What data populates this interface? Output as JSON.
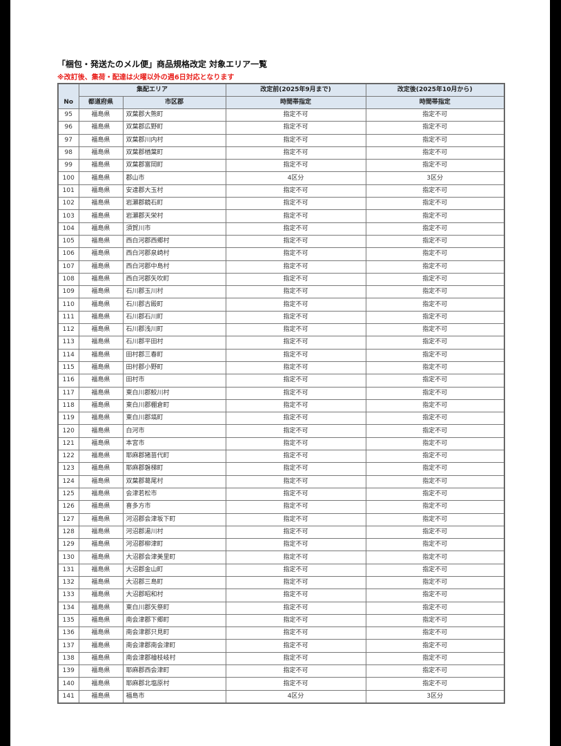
{
  "title": "「梱包・発送たのメル便」商品規格改定 対象エリア一覧",
  "notice": "※改訂後、集荷・配達は火曜以外の週6日対応となります",
  "notice_color": "#e8201c",
  "header_bg": "#dce6f1",
  "headers": {
    "no": "No",
    "area_group": "集配エリア",
    "prefecture": "都道府県",
    "city": "市区郡",
    "before_group": "改定前(2025年9月まで)",
    "before_sub": "時間帯指定",
    "after_group": "改定後(2025年10月から)",
    "after_sub": "時間帯指定"
  },
  "rows": [
    {
      "no": "95",
      "pref": "福島県",
      "city": "双葉郡大熊町",
      "before": "指定不可",
      "after": "指定不可"
    },
    {
      "no": "96",
      "pref": "福島県",
      "city": "双葉郡広野町",
      "before": "指定不可",
      "after": "指定不可"
    },
    {
      "no": "97",
      "pref": "福島県",
      "city": "双葉郡川内村",
      "before": "指定不可",
      "after": "指定不可"
    },
    {
      "no": "98",
      "pref": "福島県",
      "city": "双葉郡楢葉町",
      "before": "指定不可",
      "after": "指定不可"
    },
    {
      "no": "99",
      "pref": "福島県",
      "city": "双葉郡富岡町",
      "before": "指定不可",
      "after": "指定不可"
    },
    {
      "no": "100",
      "pref": "福島県",
      "city": "郡山市",
      "before": "4区分",
      "after": "3区分"
    },
    {
      "no": "101",
      "pref": "福島県",
      "city": "安達郡大玉村",
      "before": "指定不可",
      "after": "指定不可"
    },
    {
      "no": "102",
      "pref": "福島県",
      "city": "岩瀬郡鏡石町",
      "before": "指定不可",
      "after": "指定不可"
    },
    {
      "no": "103",
      "pref": "福島県",
      "city": "岩瀬郡天栄村",
      "before": "指定不可",
      "after": "指定不可"
    },
    {
      "no": "104",
      "pref": "福島県",
      "city": "須賀川市",
      "before": "指定不可",
      "after": "指定不可"
    },
    {
      "no": "105",
      "pref": "福島県",
      "city": "西白河郡西郷村",
      "before": "指定不可",
      "after": "指定不可"
    },
    {
      "no": "106",
      "pref": "福島県",
      "city": "西白河郡泉崎村",
      "before": "指定不可",
      "after": "指定不可"
    },
    {
      "no": "107",
      "pref": "福島県",
      "city": "西白河郡中島村",
      "before": "指定不可",
      "after": "指定不可"
    },
    {
      "no": "108",
      "pref": "福島県",
      "city": "西白河郡矢吹町",
      "before": "指定不可",
      "after": "指定不可"
    },
    {
      "no": "109",
      "pref": "福島県",
      "city": "石川郡玉川村",
      "before": "指定不可",
      "after": "指定不可"
    },
    {
      "no": "110",
      "pref": "福島県",
      "city": "石川郡古殿町",
      "before": "指定不可",
      "after": "指定不可"
    },
    {
      "no": "111",
      "pref": "福島県",
      "city": "石川郡石川町",
      "before": "指定不可",
      "after": "指定不可"
    },
    {
      "no": "112",
      "pref": "福島県",
      "city": "石川郡浅川町",
      "before": "指定不可",
      "after": "指定不可"
    },
    {
      "no": "113",
      "pref": "福島県",
      "city": "石川郡平田村",
      "before": "指定不可",
      "after": "指定不可"
    },
    {
      "no": "114",
      "pref": "福島県",
      "city": "田村郡三春町",
      "before": "指定不可",
      "after": "指定不可"
    },
    {
      "no": "115",
      "pref": "福島県",
      "city": "田村郡小野町",
      "before": "指定不可",
      "after": "指定不可"
    },
    {
      "no": "116",
      "pref": "福島県",
      "city": "田村市",
      "before": "指定不可",
      "after": "指定不可"
    },
    {
      "no": "117",
      "pref": "福島県",
      "city": "東白川郡鮫川村",
      "before": "指定不可",
      "after": "指定不可"
    },
    {
      "no": "118",
      "pref": "福島県",
      "city": "東白川郡棚倉町",
      "before": "指定不可",
      "after": "指定不可"
    },
    {
      "no": "119",
      "pref": "福島県",
      "city": "東白川郡塙町",
      "before": "指定不可",
      "after": "指定不可"
    },
    {
      "no": "120",
      "pref": "福島県",
      "city": "白河市",
      "before": "指定不可",
      "after": "指定不可"
    },
    {
      "no": "121",
      "pref": "福島県",
      "city": "本宮市",
      "before": "指定不可",
      "after": "指定不可"
    },
    {
      "no": "122",
      "pref": "福島県",
      "city": "耶麻郡猪苗代町",
      "before": "指定不可",
      "after": "指定不可"
    },
    {
      "no": "123",
      "pref": "福島県",
      "city": "耶麻郡磐梯町",
      "before": "指定不可",
      "after": "指定不可"
    },
    {
      "no": "124",
      "pref": "福島県",
      "city": "双葉郡葛尾村",
      "before": "指定不可",
      "after": "指定不可"
    },
    {
      "no": "125",
      "pref": "福島県",
      "city": "会津若松市",
      "before": "指定不可",
      "after": "指定不可"
    },
    {
      "no": "126",
      "pref": "福島県",
      "city": "喜多方市",
      "before": "指定不可",
      "after": "指定不可"
    },
    {
      "no": "127",
      "pref": "福島県",
      "city": "河沼郡会津坂下町",
      "before": "指定不可",
      "after": "指定不可"
    },
    {
      "no": "128",
      "pref": "福島県",
      "city": "河沼郡湯川村",
      "before": "指定不可",
      "after": "指定不可"
    },
    {
      "no": "129",
      "pref": "福島県",
      "city": "河沼郡柳津町",
      "before": "指定不可",
      "after": "指定不可"
    },
    {
      "no": "130",
      "pref": "福島県",
      "city": "大沼郡会津美里町",
      "before": "指定不可",
      "after": "指定不可"
    },
    {
      "no": "131",
      "pref": "福島県",
      "city": "大沼郡金山町",
      "before": "指定不可",
      "after": "指定不可"
    },
    {
      "no": "132",
      "pref": "福島県",
      "city": "大沼郡三島町",
      "before": "指定不可",
      "after": "指定不可"
    },
    {
      "no": "133",
      "pref": "福島県",
      "city": "大沼郡昭和村",
      "before": "指定不可",
      "after": "指定不可"
    },
    {
      "no": "134",
      "pref": "福島県",
      "city": "東白川郡矢祭町",
      "before": "指定不可",
      "after": "指定不可"
    },
    {
      "no": "135",
      "pref": "福島県",
      "city": "南会津郡下郷町",
      "before": "指定不可",
      "after": "指定不可"
    },
    {
      "no": "136",
      "pref": "福島県",
      "city": "南会津郡只見町",
      "before": "指定不可",
      "after": "指定不可"
    },
    {
      "no": "137",
      "pref": "福島県",
      "city": "南会津郡南会津町",
      "before": "指定不可",
      "after": "指定不可"
    },
    {
      "no": "138",
      "pref": "福島県",
      "city": "南会津郡檜枝岐村",
      "before": "指定不可",
      "after": "指定不可"
    },
    {
      "no": "139",
      "pref": "福島県",
      "city": "耶麻郡西会津町",
      "before": "指定不可",
      "after": "指定不可"
    },
    {
      "no": "140",
      "pref": "福島県",
      "city": "耶麻郡北塩原村",
      "before": "指定不可",
      "after": "指定不可"
    },
    {
      "no": "141",
      "pref": "福島県",
      "city": "福島市",
      "before": "4区分",
      "after": "3区分"
    }
  ]
}
